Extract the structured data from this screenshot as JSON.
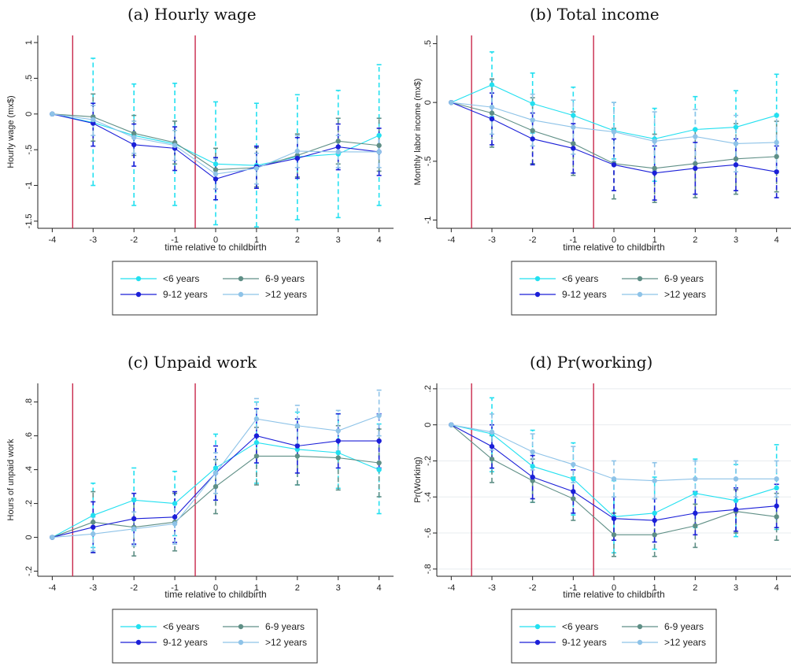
{
  "chart_data": [
    {
      "type": "line",
      "title": "(a) Hourly wage",
      "xlabel": "time relative to childbirth",
      "ylabel": "Hourly wage (mx$)",
      "x": [
        -4,
        -3,
        -2,
        -1,
        0,
        1,
        2,
        3,
        4
      ],
      "xticks": [
        "-4",
        "-3",
        "-2",
        "-1",
        "0",
        "1",
        "2",
        "3",
        "4"
      ],
      "yticks": [
        {
          "value": 1,
          "label": "1"
        },
        {
          "value": 0.5,
          "label": ".5"
        },
        {
          "value": 0,
          "label": "0"
        },
        {
          "value": -0.5,
          "label": "-.5"
        },
        {
          "value": -1,
          "label": "-1"
        },
        {
          "value": -1.5,
          "label": "-1.5"
        }
      ],
      "ylim": [
        -1.6,
        1.1
      ],
      "grid": false,
      "vlines": [
        -3.5,
        -0.5
      ],
      "legend_position": "bottom",
      "series": [
        {
          "name": "<6 years",
          "color": "#22e0f0",
          "values": [
            0,
            -0.12,
            -0.3,
            -0.42,
            -0.7,
            -0.72,
            -0.6,
            -0.56,
            -0.3
          ],
          "ci_low": [
            0,
            -1.0,
            -1.28,
            -1.28,
            -1.55,
            -1.58,
            -1.48,
            -1.45,
            -1.28
          ],
          "ci_high": [
            0,
            0.78,
            0.42,
            0.43,
            0.17,
            0.15,
            0.27,
            0.33,
            0.69
          ]
        },
        {
          "name": "6-9 years",
          "color": "#5f8f86",
          "values": [
            0,
            -0.04,
            -0.27,
            -0.4,
            -0.78,
            -0.75,
            -0.58,
            -0.38,
            -0.44
          ],
          "ci_low": [
            0,
            -0.38,
            -0.58,
            -0.7,
            -1.05,
            -1.02,
            -0.88,
            -0.7,
            -0.8
          ],
          "ci_high": [
            0,
            0.28,
            -0.02,
            -0.1,
            -0.48,
            -0.47,
            -0.28,
            -0.06,
            -0.06
          ]
        },
        {
          "name": "9-12 years",
          "color": "#1b1fd8",
          "values": [
            0,
            -0.13,
            -0.43,
            -0.48,
            -0.91,
            -0.74,
            -0.62,
            -0.46,
            -0.53
          ],
          "ci_low": [
            0,
            -0.45,
            -0.73,
            -0.79,
            -1.2,
            -1.04,
            -0.9,
            -0.78,
            -0.86
          ],
          "ci_high": [
            0,
            0.15,
            -0.14,
            -0.18,
            -0.61,
            -0.45,
            -0.33,
            -0.14,
            -0.2
          ]
        },
        {
          "name": ">12 years",
          "color": "#8ec3e8",
          "values": [
            0,
            -0.08,
            -0.33,
            -0.44,
            -0.84,
            -0.76,
            -0.52,
            -0.53,
            -0.53
          ],
          "ci_low": [
            0,
            -0.3,
            -0.55,
            -0.65,
            -1.05,
            -0.98,
            -0.75,
            -0.75,
            -0.75
          ],
          "ci_high": [
            0,
            0.12,
            -0.1,
            -0.23,
            -0.63,
            -0.55,
            -0.3,
            -0.3,
            -0.3
          ]
        }
      ]
    },
    {
      "type": "line",
      "title": "(b) Total income",
      "xlabel": "time relative to childbirth",
      "ylabel": "Monthly labor income (mx$)",
      "x": [
        -4,
        -3,
        -2,
        -1,
        0,
        1,
        2,
        3,
        4
      ],
      "xticks": [
        "-4",
        "-3",
        "-2",
        "-1",
        "0",
        "1",
        "2",
        "3",
        "4"
      ],
      "yticks": [
        {
          "value": 0.5,
          "label": ".5"
        },
        {
          "value": 0,
          "label": "0"
        },
        {
          "value": -0.5,
          "label": "-.5"
        },
        {
          "value": -1,
          "label": "-1"
        }
      ],
      "ylim": [
        -1.07,
        0.57
      ],
      "grid": false,
      "vlines": [
        -3.5,
        -0.5
      ],
      "legend_position": "bottom",
      "series": [
        {
          "name": "<6 years",
          "color": "#22e0f0",
          "values": [
            0,
            0.15,
            -0.01,
            -0.11,
            -0.24,
            -0.31,
            -0.23,
            -0.21,
            -0.11
          ],
          "ci_low": [
            0,
            -0.12,
            -0.26,
            -0.35,
            -0.48,
            -0.67,
            -0.52,
            -0.53,
            -0.46
          ],
          "ci_high": [
            0,
            0.43,
            0.25,
            0.13,
            0.0,
            -0.05,
            0.05,
            0.1,
            0.24
          ]
        },
        {
          "name": "6-9 years",
          "color": "#5f8f86",
          "values": [
            0,
            -0.09,
            -0.24,
            -0.35,
            -0.52,
            -0.56,
            -0.52,
            -0.48,
            -0.46
          ],
          "ci_low": [
            0,
            -0.38,
            -0.52,
            -0.62,
            -0.82,
            -0.85,
            -0.81,
            -0.78,
            -0.76
          ],
          "ci_high": [
            0,
            0.2,
            0.04,
            -0.08,
            -0.22,
            -0.27,
            -0.23,
            -0.18,
            -0.16
          ]
        },
        {
          "name": "9-12 years",
          "color": "#1b1fd8",
          "values": [
            0,
            -0.14,
            -0.31,
            -0.39,
            -0.53,
            -0.6,
            -0.56,
            -0.53,
            -0.59
          ],
          "ci_low": [
            0,
            -0.36,
            -0.53,
            -0.6,
            -0.75,
            -0.83,
            -0.78,
            -0.75,
            -0.81
          ],
          "ci_high": [
            0,
            0.08,
            -0.09,
            -0.18,
            -0.31,
            -0.37,
            -0.34,
            -0.31,
            -0.37
          ]
        },
        {
          "name": ">12 years",
          "color": "#8ec3e8",
          "values": [
            0,
            -0.04,
            -0.15,
            -0.21,
            -0.25,
            -0.33,
            -0.29,
            -0.35,
            -0.34
          ],
          "ci_low": [
            0,
            -0.27,
            -0.37,
            -0.44,
            -0.5,
            -0.58,
            -0.52,
            -0.59,
            -0.58
          ],
          "ci_high": [
            0,
            0.19,
            0.07,
            0.02,
            0.0,
            -0.08,
            -0.06,
            -0.11,
            -0.1
          ]
        }
      ]
    },
    {
      "type": "line",
      "title": "(c) Unpaid work",
      "xlabel": "time relative to childbirth",
      "ylabel": "Hours of unpaid work",
      "x": [
        -4,
        -3,
        -2,
        -1,
        0,
        1,
        2,
        3,
        4
      ],
      "xticks": [
        "-4",
        "-3",
        "-2",
        "-1",
        "0",
        "1",
        "2",
        "3",
        "4"
      ],
      "yticks": [
        {
          "value": 0.8,
          "label": ".8"
        },
        {
          "value": 0.6,
          "label": ".6"
        },
        {
          "value": 0.4,
          "label": ".4"
        },
        {
          "value": 0.2,
          "label": ".2"
        },
        {
          "value": 0,
          "label": "0"
        },
        {
          "value": -0.2,
          "label": "-.2"
        }
      ],
      "ylim": [
        -0.23,
        0.91
      ],
      "grid": false,
      "vlines": [
        -3.5,
        -0.5
      ],
      "legend_position": "bottom",
      "series": [
        {
          "name": "<6 years",
          "color": "#22e0f0",
          "values": [
            0,
            0.13,
            0.22,
            0.2,
            0.41,
            0.56,
            0.52,
            0.5,
            0.4
          ],
          "ci_low": [
            0,
            -0.06,
            0.04,
            0.01,
            0.22,
            0.32,
            0.31,
            0.29,
            0.14
          ],
          "ci_high": [
            0,
            0.32,
            0.41,
            0.39,
            0.61,
            0.8,
            0.74,
            0.73,
            0.67
          ]
        },
        {
          "name": "6-9 years",
          "color": "#5f8f86",
          "values": [
            0,
            0.09,
            0.06,
            0.09,
            0.3,
            0.48,
            0.48,
            0.47,
            0.44
          ],
          "ci_low": [
            0,
            -0.09,
            -0.11,
            -0.08,
            0.14,
            0.31,
            0.31,
            0.28,
            0.24
          ],
          "ci_high": [
            0,
            0.27,
            0.23,
            0.26,
            0.46,
            0.65,
            0.65,
            0.66,
            0.64
          ]
        },
        {
          "name": "9-12 years",
          "color": "#1b1fd8",
          "values": [
            0,
            0.06,
            0.11,
            0.12,
            0.38,
            0.6,
            0.54,
            0.57,
            0.57
          ],
          "ci_low": [
            0,
            -0.09,
            -0.04,
            -0.03,
            0.22,
            0.44,
            0.38,
            0.41,
            0.41
          ],
          "ci_high": [
            0,
            0.21,
            0.26,
            0.27,
            0.54,
            0.76,
            0.7,
            0.73,
            0.73
          ]
        },
        {
          "name": ">12 years",
          "color": "#8ec3e8",
          "values": [
            0,
            0.02,
            0.05,
            0.08,
            0.38,
            0.7,
            0.66,
            0.63,
            0.72
          ],
          "ci_low": [
            0,
            -0.08,
            -0.05,
            -0.04,
            0.26,
            0.59,
            0.55,
            0.51,
            0.6
          ],
          "ci_high": [
            0,
            0.12,
            0.15,
            0.2,
            0.5,
            0.82,
            0.78,
            0.75,
            0.87
          ]
        }
      ]
    },
    {
      "type": "line",
      "title": "(d) Pr(working)",
      "xlabel": "time relative to childbirth",
      "ylabel": "Pr(Working)",
      "x": [
        -4,
        -3,
        -2,
        -1,
        0,
        1,
        2,
        3,
        4
      ],
      "xticks": [
        "-4",
        "-3",
        "-2",
        "-1",
        "0",
        "1",
        "2",
        "3",
        "4"
      ],
      "yticks": [
        {
          "value": 0.2,
          "label": ".2"
        },
        {
          "value": 0,
          "label": "0"
        },
        {
          "value": -0.2,
          "label": "-.2"
        },
        {
          "value": -0.4,
          "label": "-.4"
        },
        {
          "value": -0.6,
          "label": "-.6"
        },
        {
          "value": -0.8,
          "label": "-.8"
        }
      ],
      "ylim": [
        -0.84,
        0.23
      ],
      "grid": true,
      "vlines": [
        -3.5,
        -0.5
      ],
      "legend_position": "bottom",
      "series": [
        {
          "name": "<6 years",
          "color": "#22e0f0",
          "values": [
            0,
            -0.05,
            -0.23,
            -0.3,
            -0.51,
            -0.49,
            -0.38,
            -0.42,
            -0.35
          ],
          "ci_low": [
            0,
            -0.26,
            -0.43,
            -0.5,
            -0.71,
            -0.69,
            -0.57,
            -0.62,
            -0.58
          ],
          "ci_high": [
            0,
            0.15,
            -0.03,
            -0.1,
            -0.31,
            -0.29,
            -0.19,
            -0.22,
            -0.11
          ]
        },
        {
          "name": "6-9 years",
          "color": "#5f8f86",
          "values": [
            0,
            -0.19,
            -0.31,
            -0.41,
            -0.61,
            -0.61,
            -0.56,
            -0.48,
            -0.51
          ],
          "ci_low": [
            0,
            -0.32,
            -0.43,
            -0.53,
            -0.73,
            -0.73,
            -0.68,
            -0.6,
            -0.64
          ],
          "ci_high": [
            0,
            -0.06,
            -0.19,
            -0.29,
            -0.49,
            -0.49,
            -0.44,
            -0.36,
            -0.38
          ]
        },
        {
          "name": "9-12 years",
          "color": "#1b1fd8",
          "values": [
            0,
            -0.12,
            -0.29,
            -0.37,
            -0.52,
            -0.53,
            -0.49,
            -0.47,
            -0.45
          ],
          "ci_low": [
            0,
            -0.24,
            -0.41,
            -0.49,
            -0.64,
            -0.65,
            -0.61,
            -0.59,
            -0.57
          ],
          "ci_high": [
            0,
            0.0,
            -0.17,
            -0.25,
            -0.4,
            -0.41,
            -0.37,
            -0.35,
            -0.33
          ]
        },
        {
          "name": ">12 years",
          "color": "#8ec3e8",
          "values": [
            0,
            -0.04,
            -0.15,
            -0.22,
            -0.3,
            -0.31,
            -0.3,
            -0.3,
            -0.3
          ],
          "ci_low": [
            0,
            -0.14,
            -0.25,
            -0.32,
            -0.4,
            -0.41,
            -0.4,
            -0.4,
            -0.4
          ],
          "ci_high": [
            0,
            0.06,
            -0.05,
            -0.12,
            -0.2,
            -0.21,
            -0.2,
            -0.2,
            -0.2
          ]
        }
      ]
    }
  ]
}
